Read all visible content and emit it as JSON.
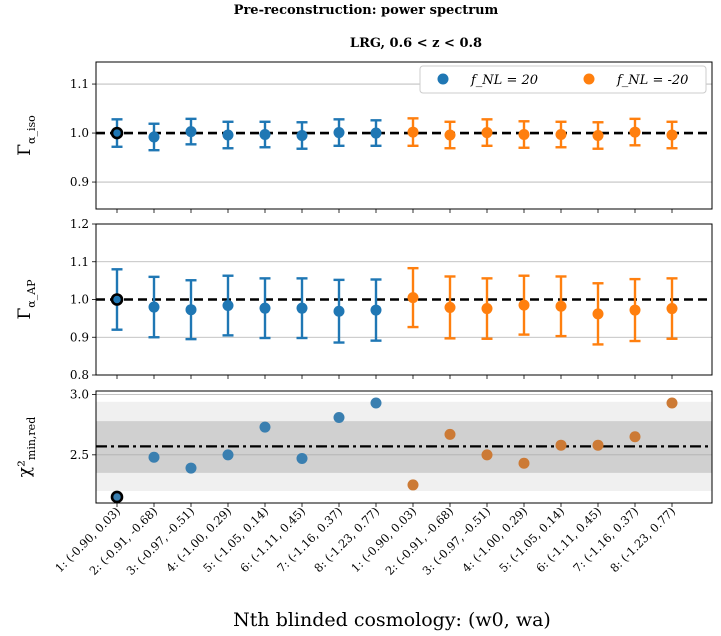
{
  "chart_data": {
    "type": "scatter",
    "suptitle": "Pre-reconstruction: power spectrum",
    "title": "LRG, 0.6 < z < 0.8",
    "xlabel": "Nth blinded cosmology: (w0, wa)",
    "categories": [
      "1: (-0.90, 0.03)",
      "2: (-0.91, -0.68)",
      "3: (-0.97, -0.51)",
      "4: (-1.00, 0.29)",
      "5: (-1.05, 0.14)",
      "6: (-1.11, 0.45)",
      "7: (-1.16, 0.37)",
      "8: (-1.23, 0.77)",
      "1: (-0.90, 0.03)",
      "2: (-0.91, -0.68)",
      "3: (-0.97, -0.51)",
      "4: (-1.00, 0.29)",
      "5: (-1.05, 0.14)",
      "6: (-1.11, 0.45)",
      "7: (-1.16, 0.37)",
      "8: (-1.23, 0.77)"
    ],
    "legend": {
      "location": "top-right",
      "entries": [
        {
          "label": "f_NL = 20",
          "color": "#1f77b4"
        },
        {
          "label": "f_NL = -20",
          "color": "#ff7f0e"
        }
      ]
    },
    "colors": {
      "blue": "#1f77b4",
      "orange": "#ff7f0e",
      "blue_muted": "#3a7fb0",
      "orange_muted": "#cc7a35"
    },
    "panels": [
      {
        "ylabel": "Γ",
        "ylabel_sub": "α_iso",
        "ylim": [
          0.845,
          1.145
        ],
        "yticks": [
          "0.9",
          "1.0",
          "1.1"
        ],
        "ytick_values": [
          0.9,
          1.0,
          1.1
        ],
        "reference_line": 1.0,
        "values": [
          1.0,
          0.992,
          1.003,
          0.996,
          0.997,
          0.995,
          1.001,
          1.0,
          1.002,
          0.996,
          1.001,
          0.997,
          0.997,
          0.995,
          1.002,
          0.996
        ],
        "errors": [
          0.028,
          0.027,
          0.026,
          0.027,
          0.026,
          0.027,
          0.027,
          0.026,
          0.028,
          0.027,
          0.027,
          0.027,
          0.026,
          0.027,
          0.027,
          0.027
        ]
      },
      {
        "ylabel": "Γ",
        "ylabel_sub": "α_AP",
        "ylim": [
          0.8,
          1.2
        ],
        "yticks": [
          "0.8",
          "0.9",
          "1.0",
          "1.1",
          "1.2"
        ],
        "ytick_values": [
          0.8,
          0.9,
          1.0,
          1.1,
          1.2
        ],
        "reference_line": 1.0,
        "values": [
          1.0,
          0.98,
          0.973,
          0.984,
          0.977,
          0.977,
          0.969,
          0.972,
          1.005,
          0.979,
          0.976,
          0.985,
          0.982,
          0.962,
          0.972,
          0.976
        ],
        "errors": [
          0.08,
          0.08,
          0.078,
          0.079,
          0.079,
          0.079,
          0.083,
          0.081,
          0.078,
          0.082,
          0.08,
          0.078,
          0.079,
          0.081,
          0.082,
          0.08
        ]
      },
      {
        "ylabel": "χ²",
        "ylabel_sub": "min,red",
        "ylim": [
          2.1,
          3.03
        ],
        "yticks": [
          "2.5",
          "3.0"
        ],
        "ytick_values": [
          2.5,
          3.0
        ],
        "reference_line": 2.57,
        "band_inner": [
          2.35,
          2.78
        ],
        "band_outer": [
          2.2,
          2.94
        ],
        "values": [
          2.15,
          2.48,
          2.39,
          2.5,
          2.73,
          2.47,
          2.81,
          2.93,
          2.25,
          2.67,
          2.5,
          2.43,
          2.58,
          2.58,
          2.65,
          2.93
        ]
      }
    ]
  }
}
